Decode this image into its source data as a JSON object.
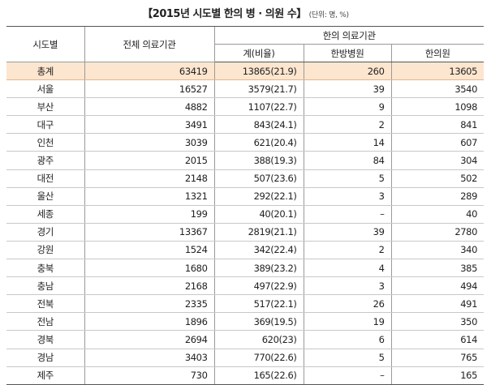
{
  "title": "【2015년 시도별 한의 병 · 의원 수】",
  "unit": "(단위: 명, %)",
  "headers": {
    "region": "시도별",
    "total": "전체 의료기관",
    "group": "한의 의료기관",
    "gye": "계(비율)",
    "hospital": "한방병원",
    "clinic": "한의원"
  },
  "rows": [
    {
      "region": "총계",
      "total": "63419",
      "gye": "13865(21.9)",
      "hospital": "260",
      "clinic": "13605"
    },
    {
      "region": "서울",
      "total": "16527",
      "gye": "3579(21.7)",
      "hospital": "39",
      "clinic": "3540"
    },
    {
      "region": "부산",
      "total": "4882",
      "gye": "1107(22.7)",
      "hospital": "9",
      "clinic": "1098"
    },
    {
      "region": "대구",
      "total": "3491",
      "gye": "843(24.1)",
      "hospital": "2",
      "clinic": "841"
    },
    {
      "region": "인천",
      "total": "3039",
      "gye": "621(20.4)",
      "hospital": "14",
      "clinic": "607"
    },
    {
      "region": "광주",
      "total": "2015",
      "gye": "388(19.3)",
      "hospital": "84",
      "clinic": "304"
    },
    {
      "region": "대전",
      "total": "2148",
      "gye": "507(23.6)",
      "hospital": "5",
      "clinic": "502"
    },
    {
      "region": "울산",
      "total": "1321",
      "gye": "292(22.1)",
      "hospital": "3",
      "clinic": "289"
    },
    {
      "region": "세종",
      "total": "199",
      "gye": "40(20.1)",
      "hospital": "–",
      "clinic": "40"
    },
    {
      "region": "경기",
      "total": "13367",
      "gye": "2819(21.1)",
      "hospital": "39",
      "clinic": "2780"
    },
    {
      "region": "강원",
      "total": "1524",
      "gye": "342(22.4)",
      "hospital": "2",
      "clinic": "340"
    },
    {
      "region": "충북",
      "total": "1680",
      "gye": "389(23.2)",
      "hospital": "4",
      "clinic": "385"
    },
    {
      "region": "충남",
      "total": "2168",
      "gye": "497(22.9)",
      "hospital": "3",
      "clinic": "494"
    },
    {
      "region": "전북",
      "total": "2335",
      "gye": "517(22.1)",
      "hospital": "26",
      "clinic": "491"
    },
    {
      "region": "전남",
      "total": "1896",
      "gye": "369(19.5)",
      "hospital": "19",
      "clinic": "350"
    },
    {
      "region": "경북",
      "total": "2694",
      "gye": "620(23)",
      "hospital": "6",
      "clinic": "614"
    },
    {
      "region": "경남",
      "total": "3403",
      "gye": "770(22.6)",
      "hospital": "5",
      "clinic": "765"
    },
    {
      "region": "제주",
      "total": "730",
      "gye": "165(22.6)",
      "hospital": "–",
      "clinic": "165"
    }
  ],
  "colors": {
    "total_row_bg": "#fde6cf",
    "rule": "#555555",
    "grid": "#9a9a9a"
  }
}
